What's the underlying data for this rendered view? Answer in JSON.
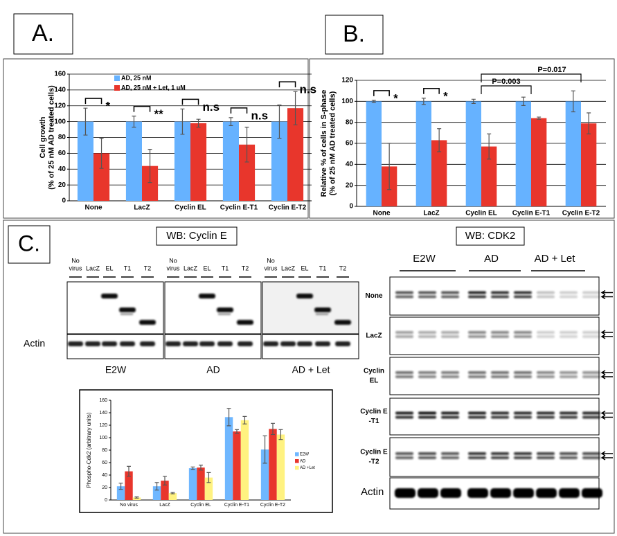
{
  "panel_labels": [
    "A.",
    "B.",
    "C."
  ],
  "chart_data": [
    {
      "type": "bar",
      "y_label": [
        "Cell growth",
        "(% of 25 nM AD treated cells)"
      ],
      "categories": [
        "None",
        "LacZ",
        "Cyclin EL",
        "Cyclin E-T1",
        "Cyclin E-T2"
      ],
      "series": [
        {
          "name": "AD, 25 nM",
          "color": "#66b2ff",
          "values": [
            100,
            100,
            100,
            100,
            100
          ],
          "errors": [
            17,
            7,
            16,
            5,
            21
          ]
        },
        {
          "name": "AD, 25 nM + Let, 1 uM",
          "color": "#e8362c",
          "values": [
            60,
            44,
            98,
            71,
            117
          ],
          "errors": [
            19,
            21,
            5,
            22,
            21
          ]
        }
      ],
      "annotations": [
        "*",
        "**",
        "n.s",
        "n.s",
        "n.s"
      ],
      "ylim": [
        0,
        160
      ],
      "yticks": [
        0,
        20,
        40,
        60,
        80,
        100,
        120,
        140,
        160
      ],
      "grid": true,
      "legend": "top-left"
    },
    {
      "type": "bar",
      "y_label": [
        "Relative % of cells in S-phase",
        "(% of 25 nM AD treated cells)"
      ],
      "categories": [
        "None",
        "LacZ",
        "Cyclin EL",
        "Cyclin E-T1",
        "Cyclin E-T2"
      ],
      "series": [
        {
          "color": "#66b2ff",
          "values": [
            100,
            100,
            100,
            100,
            100
          ],
          "errors": [
            1,
            3,
            2,
            4,
            10
          ]
        },
        {
          "color": "#e8362c",
          "values": [
            38,
            63,
            57,
            84,
            79
          ],
          "errors": [
            22,
            11,
            12,
            1,
            10
          ]
        }
      ],
      "annotations": [
        "*",
        "*",
        null,
        null,
        null
      ],
      "comparisons": [
        "P=0.003",
        "P=0.017"
      ],
      "ylim": [
        0,
        120
      ],
      "yticks": [
        0,
        20,
        40,
        60,
        80,
        100,
        120
      ],
      "grid": true
    },
    {
      "type": "bar",
      "y_label": [
        "Phospho-Cdk2 (arbitrary units)"
      ],
      "categories": [
        "No virus",
        "LacZ",
        "Cyclin EL",
        "Cyclin E-T1",
        "Cyclin E-T2"
      ],
      "series": [
        {
          "name": "E2W",
          "color": "#6fb7ff",
          "values": [
            22,
            22,
            51,
            133,
            81
          ],
          "errors": [
            5,
            6,
            2,
            14,
            22
          ]
        },
        {
          "name": "AD",
          "color": "#e8362c",
          "values": [
            46,
            31,
            52,
            110,
            114
          ],
          "errors": [
            8,
            7,
            4,
            3,
            9
          ]
        },
        {
          "name": "AD +Let",
          "color": "#fff280",
          "values": [
            4,
            11,
            36,
            128,
            105
          ],
          "errors": [
            1,
            1,
            8,
            6,
            8
          ]
        }
      ],
      "ylim": [
        0,
        160
      ],
      "yticks": [
        0,
        20,
        40,
        60,
        80,
        100,
        120,
        140,
        160
      ],
      "grid": false,
      "legend": "right"
    }
  ],
  "cyclin_e_blot": {
    "title": "WB: Cyclin E",
    "lanes": [
      [
        "No",
        "virus"
      ],
      [
        "LacZ"
      ],
      [
        "EL"
      ],
      [
        "T1"
      ],
      [
        "T2"
      ]
    ],
    "loading": "Actin",
    "groups": [
      "E2W",
      "AD",
      "AD + Let"
    ]
  },
  "cdk2_blot": {
    "title": "WB: CDK2",
    "groups": [
      "E2W",
      "AD",
      "AD + Let"
    ],
    "rows": [
      [
        "None"
      ],
      [
        "LacZ"
      ],
      [
        "Cyclin",
        "EL"
      ],
      [
        "Cyclin E",
        "-T1"
      ],
      [
        "Cyclin E",
        "-T2"
      ]
    ],
    "loading": "Actin"
  }
}
